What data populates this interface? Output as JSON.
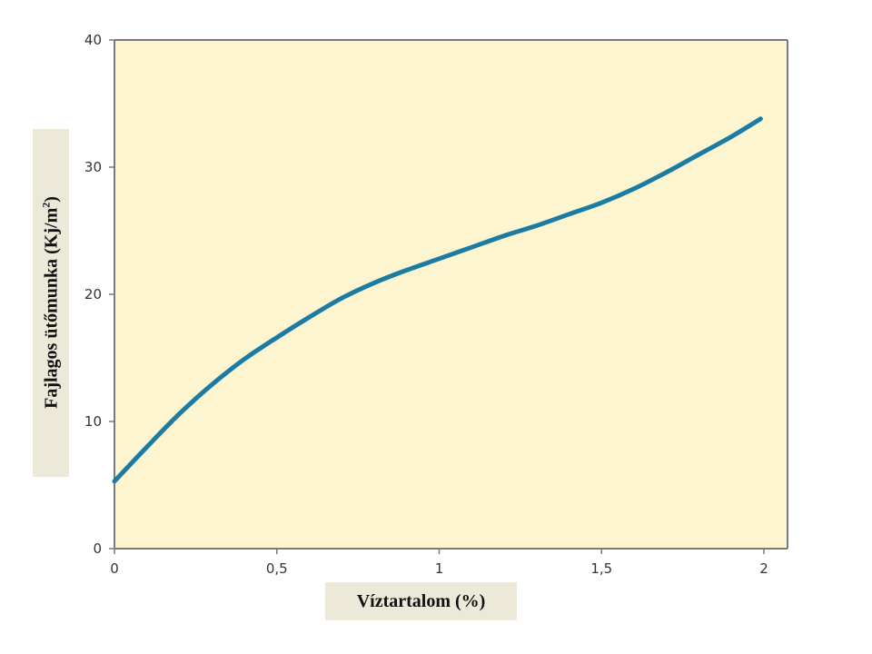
{
  "chart_data": {
    "type": "line",
    "xlabel": "Víztartalom (%)",
    "ylabel": "Fajlagos ütőmunka (Kj/m",
    "ylabel_sup": "2",
    "ylabel_suffix": ")",
    "xlim": [
      0,
      2
    ],
    "ylim": [
      0,
      40
    ],
    "x_ticks": [
      "0",
      "0,5",
      "1",
      "1,5",
      "2"
    ],
    "y_ticks": [
      "0",
      "10",
      "20",
      "30",
      "40"
    ],
    "grid": false,
    "series": [
      {
        "color": "#1b7ba3",
        "x": [
          0,
          0.1,
          0.2,
          0.3,
          0.4,
          0.5,
          0.6,
          0.7,
          0.8,
          0.9,
          1.0,
          1.1,
          1.2,
          1.3,
          1.4,
          1.5,
          1.6,
          1.7,
          1.8,
          1.9,
          1.99
        ],
        "y": [
          5.3,
          8.0,
          10.6,
          12.9,
          14.9,
          16.6,
          18.2,
          19.7,
          20.9,
          21.9,
          22.8,
          23.7,
          24.6,
          25.4,
          26.3,
          27.2,
          28.3,
          29.6,
          31.0,
          32.4,
          33.8
        ]
      }
    ],
    "colors": {
      "plot_bg": "#fcf5d0",
      "frame": "#7a7a7a",
      "line": "#1b7ba3",
      "label_bg": "#ece9d8"
    }
  }
}
